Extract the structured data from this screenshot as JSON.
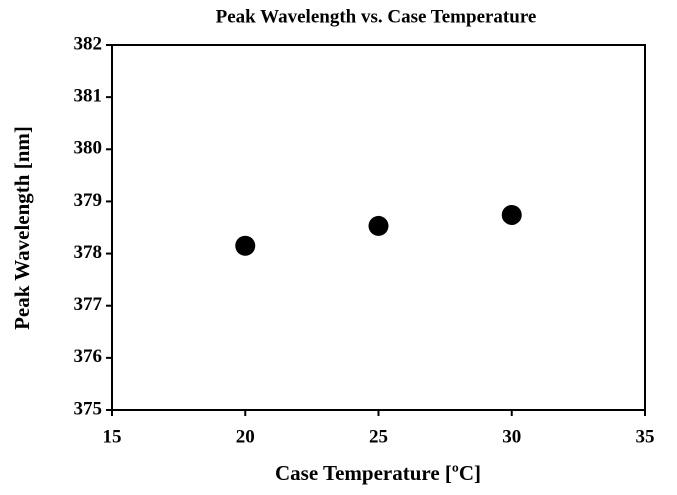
{
  "chart_data": {
    "type": "scatter",
    "title": "Peak Wavelength vs. Case Temperature",
    "x_label": "Case Temperature [ºC]",
    "y_label": "Peak Wavelength [nm]",
    "series": [
      {
        "x": [
          20,
          25,
          30
        ],
        "values": [
          378.15,
          378.53,
          378.74
        ],
        "color": "#000000"
      }
    ],
    "xlim": [
      15,
      35
    ],
    "xticks": [
      15,
      20,
      25,
      30,
      35
    ],
    "ylim": [
      375,
      382
    ],
    "yticks": [
      375,
      376,
      377,
      378,
      379,
      380,
      381,
      382
    ]
  }
}
